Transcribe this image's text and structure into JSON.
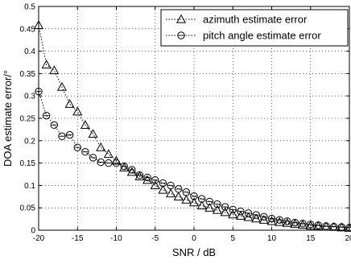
{
  "chart_data": {
    "type": "line",
    "xlabel": "SNR / dB",
    "ylabel": "DOA estimate error/°",
    "xlim": [
      -20,
      20
    ],
    "ylim": [
      0,
      0.5
    ],
    "xticks": [
      -20,
      -15,
      -10,
      -5,
      0,
      5,
      10,
      15,
      20
    ],
    "yticks": [
      0,
      0.05,
      0.1,
      0.15,
      0.2,
      0.25,
      0.3,
      0.35,
      0.4,
      0.45,
      0.5
    ],
    "xtick_labels": [
      "-20",
      "-15",
      "-10",
      "-5",
      "0",
      "5",
      "10",
      "15",
      "20"
    ],
    "ytick_labels": [
      "0",
      "0.05",
      "0.1",
      "0.15",
      "0.2",
      "0.25",
      "0.3",
      "0.35",
      "0.4",
      "0.45",
      "0.5"
    ],
    "grid": true,
    "legend_position": "top-right",
    "x": [
      -20,
      -19,
      -18,
      -17,
      -16,
      -15,
      -14,
      -13,
      -12,
      -11,
      -10,
      -9,
      -8,
      -7,
      -6,
      -5,
      -4,
      -3,
      -2,
      -1,
      0,
      1,
      2,
      3,
      4,
      5,
      6,
      7,
      8,
      9,
      10,
      11,
      12,
      13,
      14,
      15,
      16,
      17,
      18,
      19,
      20
    ],
    "series": [
      {
        "name": "azimuth estimate error",
        "marker": "triangle",
        "color": "#000000",
        "values": [
          0.458,
          0.37,
          0.357,
          0.32,
          0.282,
          0.265,
          0.235,
          0.215,
          0.185,
          0.17,
          0.155,
          0.14,
          0.13,
          0.12,
          0.112,
          0.1,
          0.09,
          0.082,
          0.075,
          0.068,
          0.062,
          0.055,
          0.05,
          0.045,
          0.04,
          0.035,
          0.032,
          0.029,
          0.026,
          0.023,
          0.02,
          0.018,
          0.016,
          0.014,
          0.012,
          0.01,
          0.009,
          0.008,
          0.007,
          0.006,
          0.005
        ]
      },
      {
        "name": "pitch angle estimate error",
        "marker": "circle",
        "color": "#000000",
        "values": [
          0.31,
          0.256,
          0.235,
          0.21,
          0.213,
          0.185,
          0.175,
          0.162,
          0.152,
          0.15,
          0.15,
          0.143,
          0.135,
          0.123,
          0.118,
          0.112,
          0.105,
          0.1,
          0.092,
          0.085,
          0.076,
          0.07,
          0.064,
          0.058,
          0.052,
          0.046,
          0.042,
          0.038,
          0.034,
          0.03,
          0.026,
          0.023,
          0.02,
          0.017,
          0.015,
          0.013,
          0.011,
          0.009,
          0.008,
          0.007,
          0.006
        ]
      }
    ]
  }
}
